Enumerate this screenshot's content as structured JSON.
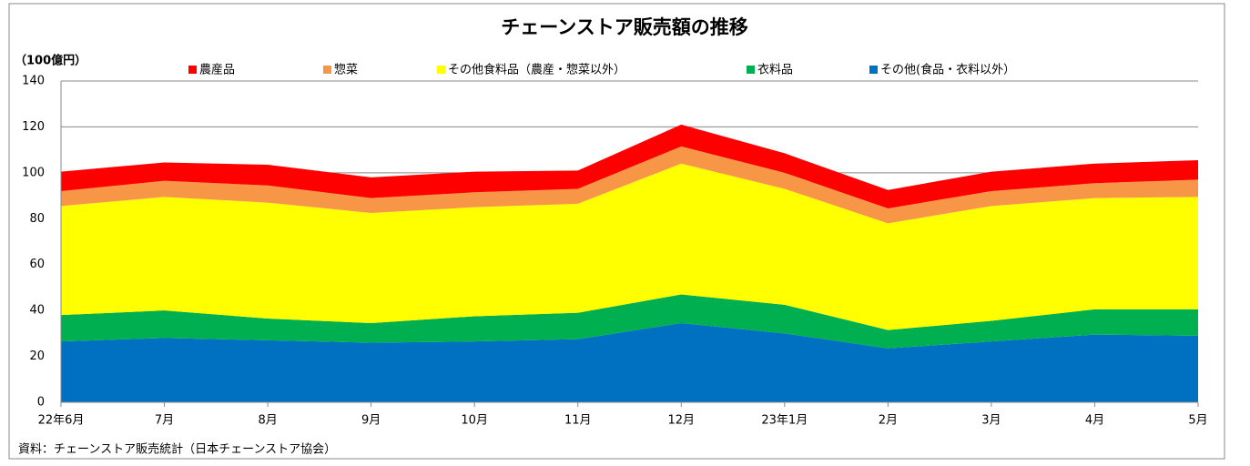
{
  "chart_data": {
    "type": "stacked_area",
    "title": "チェーンストア販売額の推移",
    "y_label": "（100億円）",
    "source": "資料：チェーンストア販売統計（日本チェーンストア協会）",
    "categories": [
      "22年6月",
      "7月",
      "8月",
      "9月",
      "10月",
      "11月",
      "12月",
      "23年1月",
      "2月",
      "3月",
      "4月",
      "5月"
    ],
    "series": [
      {
        "name": "農産品",
        "color": "#ff0000",
        "values": [
          8.5,
          8,
          9,
          9,
          9,
          8,
          9.5,
          8.5,
          8,
          8.5,
          8.5,
          8.5
        ]
      },
      {
        "name": "惣菜",
        "color": "#f79646",
        "values": [
          6.5,
          7,
          7.5,
          6.5,
          6.5,
          6.5,
          7.5,
          7,
          6.5,
          6.5,
          6.5,
          7.5
        ]
      },
      {
        "name": "その他食料品（農産・惣菜以外）",
        "color": "#ffff00",
        "values": [
          47.5,
          49.5,
          50.5,
          48,
          47.5,
          47.5,
          57,
          50.5,
          46.5,
          50,
          48.5,
          49
        ]
      },
      {
        "name": "衣料品",
        "color": "#00b050",
        "values": [
          11.5,
          12,
          9.5,
          8.5,
          11,
          11.5,
          12.5,
          12.5,
          8,
          9,
          11,
          11.5
        ]
      },
      {
        "name": "その他(食品・衣料以外）",
        "color": "#0070c0",
        "values": [
          26.5,
          28,
          27,
          26,
          26.5,
          27.5,
          34.5,
          30,
          23.5,
          26.5,
          29.5,
          29
        ]
      }
    ],
    "ylim": [
      0,
      140
    ],
    "yticks": [
      0,
      20,
      40,
      60,
      80,
      100,
      120,
      140
    ],
    "grid": true
  }
}
